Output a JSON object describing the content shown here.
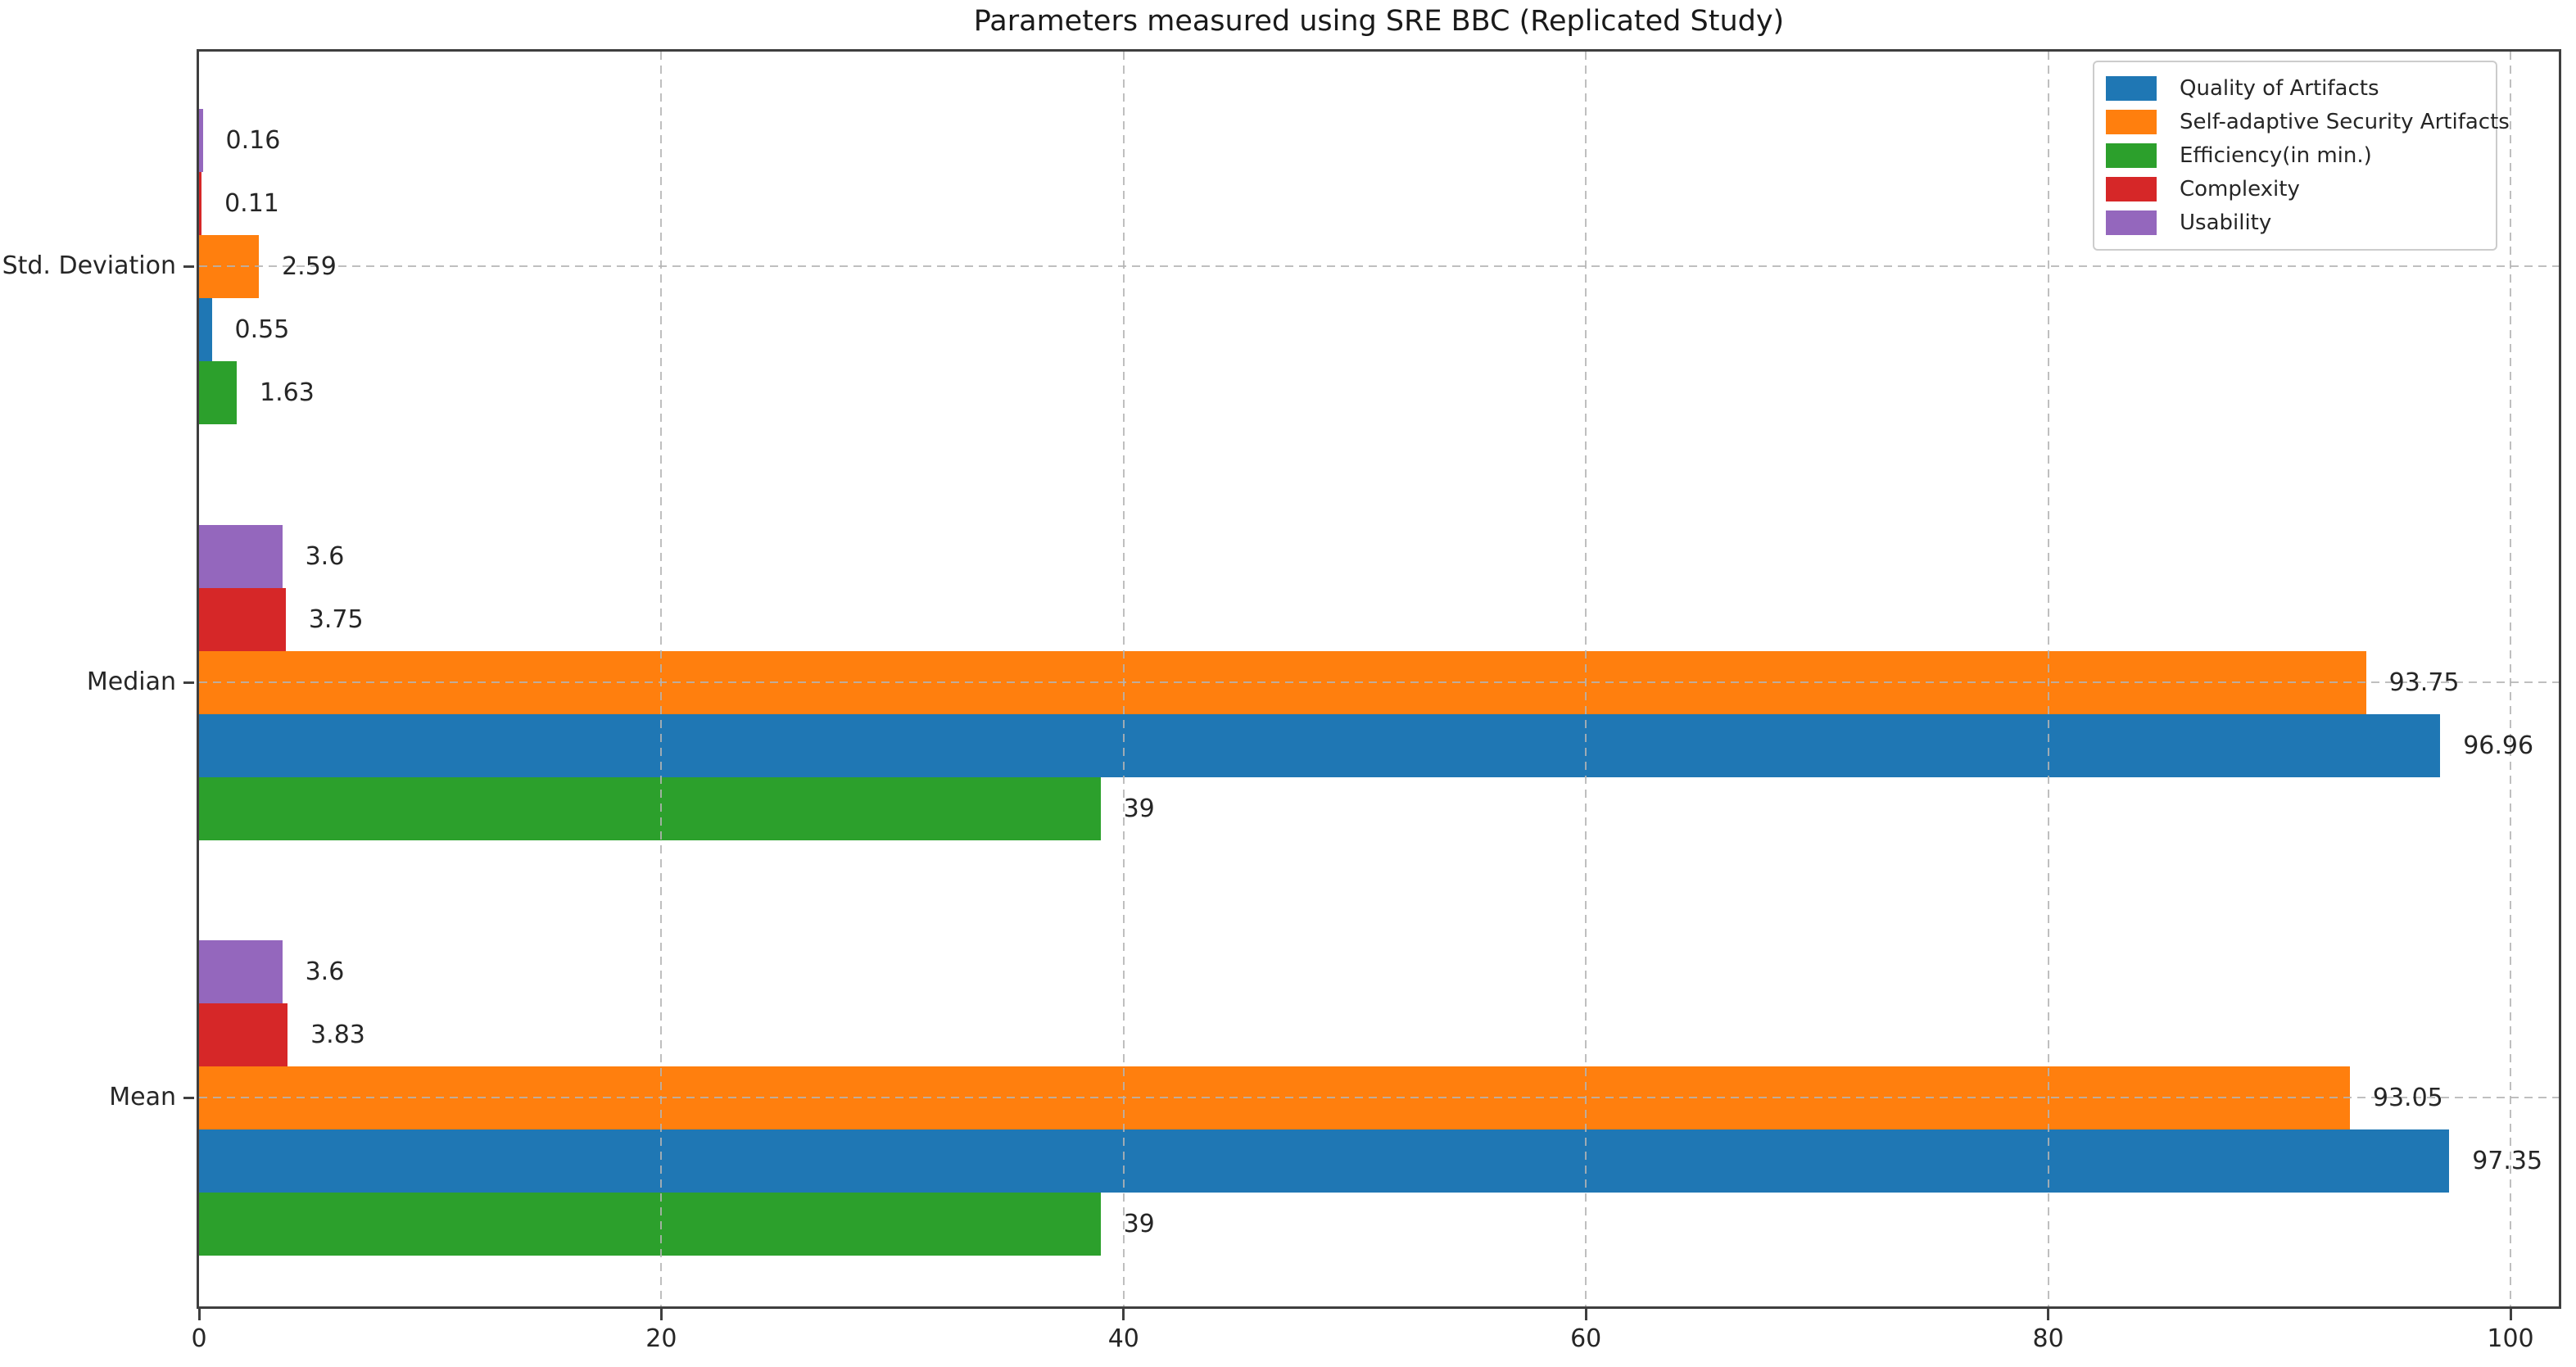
{
  "title": "Parameters measured using SRE BBC (Replicated Study)",
  "chart_data": {
    "type": "bar",
    "orientation": "horizontal",
    "title": "Parameters measured using SRE BBC (Replicated Study)",
    "categories": [
      "Std. Deviation",
      "Median",
      "Mean"
    ],
    "series": [
      {
        "name": "Quality of Artifacts",
        "color": "#1f77b4",
        "values": [
          0.55,
          96.96,
          97.35
        ],
        "labels": [
          "0.55",
          "96.96",
          "97.35"
        ]
      },
      {
        "name": "Self-adaptive Security Artifacts",
        "color": "#ff7f0e",
        "values": [
          2.59,
          93.75,
          93.05
        ],
        "labels": [
          "2.59",
          "93.75",
          "93.05"
        ]
      },
      {
        "name": "Efficiency(in min.)",
        "color": "#2ca02c",
        "values": [
          1.63,
          39,
          39
        ],
        "labels": [
          "1.63",
          "39",
          "39"
        ]
      },
      {
        "name": "Complexity",
        "color": "#d62728",
        "values": [
          0.11,
          3.75,
          3.83
        ],
        "labels": [
          "0.11",
          "3.75",
          "3.83"
        ]
      },
      {
        "name": "Usability",
        "color": "#9467bd",
        "values": [
          0.16,
          3.6,
          3.6
        ],
        "labels": [
          "0.16",
          "3.6",
          "3.6"
        ]
      }
    ],
    "bar_order_top_to_bottom": [
      "Usability",
      "Complexity",
      "Self-adaptive Security Artifacts",
      "Quality of Artifacts",
      "Efficiency(in min.)"
    ],
    "x_ticks": [
      0,
      20,
      40,
      60,
      80,
      100
    ],
    "x_tick_labels": [
      "0",
      "20",
      "40",
      "60",
      "80",
      "100"
    ],
    "xlim": [
      0,
      102.3
    ],
    "grid": "dashed gridlines on both axes, drawn above bars",
    "legend_position": "upper right",
    "legend_entries": [
      "Quality of Artifacts",
      "Self-adaptive Security Artifacts",
      "Efficiency(in min.)",
      "Complexity",
      "Usability"
    ]
  }
}
